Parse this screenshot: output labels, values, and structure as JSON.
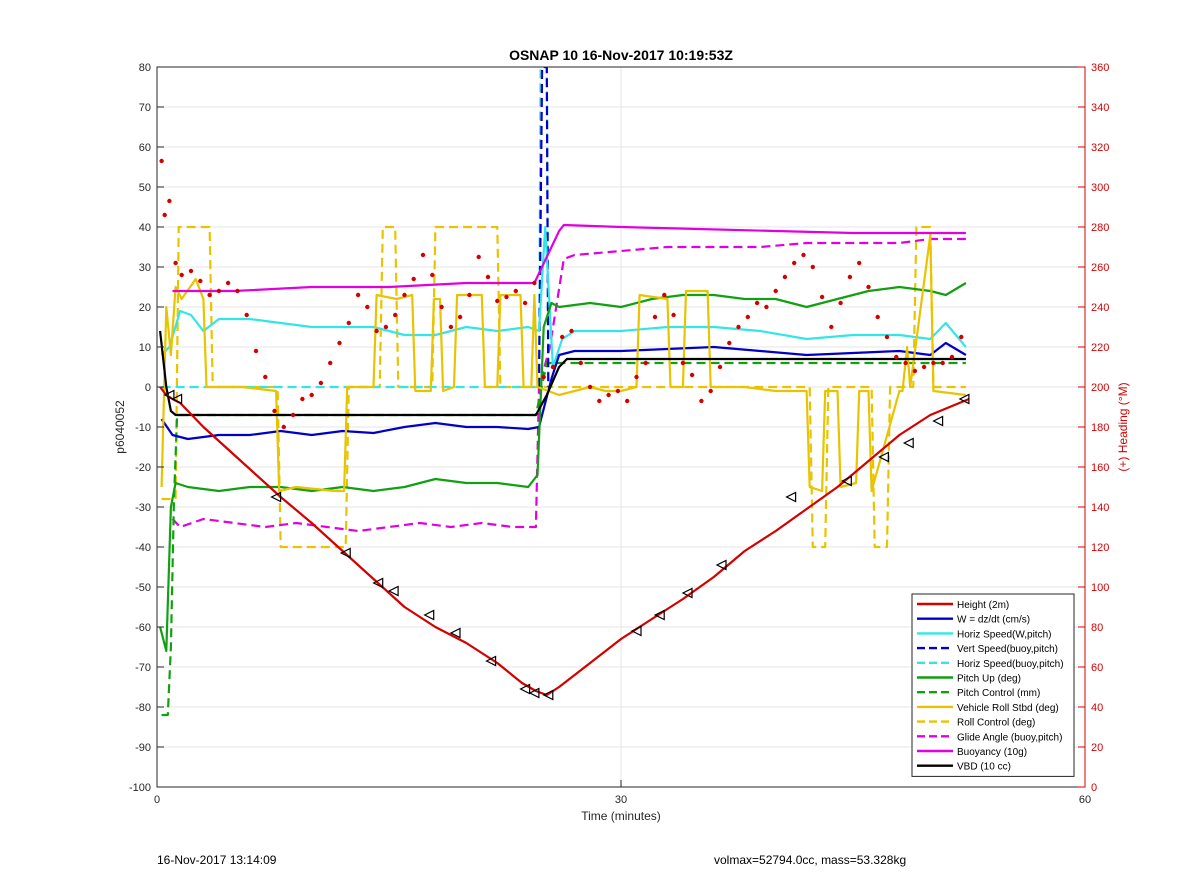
{
  "footer": {
    "timestamp": "16-Nov-2017 13:14:09",
    "summary": "volmax=52794.0cc, mass=53.328kg"
  },
  "chart_data": {
    "type": "line",
    "title": "OSNAP 10 16-Nov-2017 10:19:53Z",
    "xlabel": "Time (minutes)",
    "ylabel": "p6040052",
    "y2label": "(+) Heading (°M)",
    "xlim": [
      0,
      60
    ],
    "ylim": [
      -100,
      80
    ],
    "y2lim": [
      0,
      360
    ],
    "xticks": [
      0,
      30,
      60
    ],
    "yticks": [
      -100,
      -90,
      -80,
      -70,
      -60,
      -50,
      -40,
      -30,
      -20,
      -10,
      0,
      10,
      20,
      30,
      40,
      50,
      60,
      70,
      80
    ],
    "y2ticks": [
      0,
      20,
      40,
      60,
      80,
      100,
      120,
      140,
      160,
      180,
      200,
      220,
      240,
      260,
      280,
      300,
      320,
      340,
      360
    ],
    "grid": true,
    "legend_position": "bottom-right",
    "colors": {
      "red": "#d40000",
      "blue": "#0000c8",
      "cyan": "#33e6e6",
      "green": "#12a012",
      "yellow": "#e8c400",
      "magenta": "#e000e0",
      "black": "#000000",
      "right_axis": "#d40000"
    },
    "series": [
      {
        "name": "Height (2m)",
        "color": "red",
        "style": "solid",
        "x": [
          0.2,
          0.6,
          1.0,
          1.5,
          3,
          5,
          8,
          10,
          12,
          14,
          16,
          18,
          20,
          22,
          23.6,
          24.5,
          25.2,
          26,
          28,
          30,
          32,
          34,
          36,
          38,
          40,
          42,
          44,
          46,
          48,
          50,
          52.5
        ],
        "y": [
          0,
          -2,
          -3,
          -4,
          -10,
          -17,
          -27.5,
          -34,
          -41,
          -48,
          -55,
          -60,
          -64,
          -69,
          -74,
          -76,
          -77,
          -75,
          -69,
          -63,
          -58,
          -53,
          -47.5,
          -41,
          -36,
          -30.5,
          -25,
          -18.5,
          -12,
          -7,
          -3
        ]
      },
      {
        "name": "W = dz/dt (cm/s)",
        "color": "blue",
        "style": "solid",
        "x": [
          0.3,
          1,
          2,
          4,
          6,
          8,
          10,
          12,
          14,
          16,
          18,
          20,
          22,
          24,
          24.7,
          25.5,
          26,
          27,
          30,
          33,
          36,
          39,
          42,
          45,
          48,
          50,
          51,
          52.3
        ],
        "y": [
          -8,
          -12,
          -13,
          -12,
          -12,
          -11,
          -12,
          -11,
          -11.5,
          -10,
          -9,
          -10,
          -10,
          -10.5,
          -10,
          2,
          8,
          9,
          9,
          9.5,
          10,
          9,
          8,
          8.5,
          9,
          8,
          11,
          8
        ]
      },
      {
        "name": "Horiz Speed(W,pitch)",
        "color": "cyan",
        "style": "solid",
        "x": [
          0.3,
          0.8,
          1.5,
          2.2,
          3,
          4,
          6,
          8,
          10,
          12,
          14,
          16,
          18,
          20,
          22,
          24,
          24.7,
          25.1,
          25.6,
          26.2,
          27,
          30,
          33,
          36,
          39,
          42,
          45,
          48,
          50,
          51,
          52.3
        ],
        "y": [
          8,
          10,
          19,
          18,
          14,
          17,
          17,
          16,
          15,
          15,
          15,
          13,
          13,
          15,
          14,
          15,
          14,
          40,
          5,
          12,
          14,
          14,
          15,
          15,
          14,
          12,
          13,
          13,
          12,
          16,
          10
        ]
      },
      {
        "name": "Vert Speed(buoy,pitch)",
        "color": "blue",
        "style": "dashed",
        "x": [
          0,
          24.6,
          24.7,
          24.9,
          25.0,
          25.2,
          25.3,
          60
        ],
        "y": [
          null,
          null,
          0,
          80,
          80,
          80,
          0,
          null
        ]
      },
      {
        "name": "Horiz Speed(buoy,pitch)",
        "color": "cyan",
        "style": "dashed",
        "x": [
          0.3,
          24.5,
          24.7,
          24.8,
          25.2,
          25.3
        ],
        "y": [
          0,
          0,
          0,
          80,
          80,
          0
        ]
      },
      {
        "name": "Pitch Up (deg)",
        "color": "green",
        "style": "solid",
        "x": [
          0.2,
          0.6,
          0.9,
          1.2,
          2,
          4,
          6,
          8,
          10,
          12,
          14,
          16,
          18,
          20,
          22,
          24,
          24.6,
          25.0,
          25.5,
          26,
          28,
          30,
          32,
          34,
          36,
          38,
          40,
          42,
          44,
          46,
          48,
          50,
          51,
          52.3
        ],
        "y": [
          -60,
          -66,
          -30,
          -24,
          -25,
          -26,
          -25,
          -25,
          -26,
          -25,
          -26,
          -25,
          -23,
          -24,
          -24,
          -25,
          -22,
          15,
          21,
          20,
          21,
          20,
          22,
          23,
          23,
          22,
          22,
          20,
          22,
          24,
          25,
          24,
          23,
          26
        ]
      },
      {
        "name": "Pitch Control (mm)",
        "color": "green",
        "style": "dashed",
        "x": [
          0.3,
          0.7,
          0.9,
          1.1,
          1.3,
          5,
          10,
          15,
          20,
          24.5,
          25.2,
          26,
          30,
          40,
          50,
          52.3
        ],
        "y": [
          -82,
          -82,
          -65,
          -28,
          -7,
          -7,
          -7,
          -7,
          -7,
          -7,
          6,
          6,
          6,
          6,
          6,
          6
        ]
      },
      {
        "name": "Vehicle Roll Stbd (deg)",
        "color": "yellow",
        "style": "solid",
        "x": [
          0.3,
          0.6,
          0.9,
          1.2,
          1.6,
          2.5,
          3.0,
          3.2,
          5.5,
          7.7,
          7.9,
          9,
          11.5,
          12.1,
          12.3,
          14,
          14.2,
          15.5,
          16.5,
          16.7,
          17.7,
          17.9,
          18.3,
          18.5,
          19.2,
          19.4,
          21,
          21.2,
          22,
          22.2,
          23.5,
          23.7,
          24.2,
          24.4,
          24.6,
          26,
          28,
          29,
          30,
          31,
          31.2,
          33,
          33.2,
          34,
          34.2,
          35.6,
          35.8,
          38,
          40,
          42,
          42.2,
          43,
          43.2,
          44,
          44.2,
          45.2,
          45.4,
          46,
          46.2,
          48,
          48.2,
          48.5,
          48.7,
          50,
          50.2,
          52.3
        ],
        "y": [
          -25,
          20,
          8,
          25,
          22,
          27,
          22,
          0,
          0,
          -1,
          -26,
          -25,
          -26,
          -26,
          0,
          0,
          23,
          22,
          23,
          -1,
          -1,
          22,
          22,
          -1,
          0,
          23,
          23,
          0,
          0,
          23,
          23,
          0,
          0,
          23,
          0,
          -2,
          0,
          -1,
          -1,
          0,
          23,
          22,
          0,
          0,
          24,
          24,
          0,
          0,
          -1,
          -1,
          -25,
          -26,
          -1,
          -1,
          -25,
          -24,
          -1,
          -1,
          -26,
          -1,
          -1,
          10,
          0,
          38,
          -1,
          -2
        ]
      },
      {
        "name": "Roll Control (deg)",
        "color": "yellow",
        "style": "dashed",
        "x": [
          0.3,
          1.2,
          1.4,
          3.4,
          3.6,
          7.8,
          8.0,
          12.2,
          12.4,
          14.4,
          14.6,
          15.4,
          15.6,
          17.8,
          18.0,
          22.0,
          22.2,
          24.4,
          24.6,
          30,
          40,
          42.2,
          42.4,
          43.2,
          43.4,
          46.2,
          46.4,
          47.2,
          47.4,
          48.9,
          49.1,
          50.0,
          50.2,
          52.3
        ],
        "y": [
          -28,
          -28,
          40,
          40,
          0,
          0,
          -40,
          -40,
          0,
          0,
          40,
          40,
          0,
          0,
          40,
          40,
          0,
          0,
          0,
          0,
          0,
          0,
          -40,
          -40,
          0,
          0,
          -40,
          -40,
          0,
          0,
          40,
          40,
          0,
          0
        ]
      },
      {
        "name": "Glide Angle (buoy,pitch)",
        "color": "magenta",
        "style": "dashed",
        "x": [
          1.0,
          1.5,
          3,
          5,
          7,
          9,
          11,
          13,
          15,
          17,
          19,
          21,
          23,
          24.5,
          24.7,
          25.4,
          26.3,
          27,
          30,
          33,
          36,
          39,
          42,
          45,
          48,
          50,
          51,
          52.3
        ],
        "y": [
          -33,
          -35,
          -33,
          -34,
          -35,
          -34,
          -35,
          -36,
          -35,
          -34,
          -35,
          -34,
          -35,
          -35,
          0,
          10,
          32,
          33,
          34,
          35,
          35,
          35,
          36,
          36,
          36,
          37,
          37,
          37
        ]
      },
      {
        "name": "Buoyancy (10g)",
        "color": "magenta",
        "style": "solid",
        "x": [
          1.0,
          5,
          10,
          15,
          20,
          24.4,
          26.0,
          26.3,
          30,
          35,
          40,
          45,
          50,
          52.3
        ],
        "y": [
          24,
          24,
          25,
          25,
          26,
          26,
          39,
          40.5,
          40,
          39.5,
          39,
          38.5,
          38.5,
          38.5
        ]
      },
      {
        "name": "VBD (10 cc)",
        "color": "black",
        "style": "solid",
        "x": [
          0.2,
          0.6,
          0.9,
          1.2,
          5,
          10,
          15,
          20,
          24.5,
          25.2,
          26.0,
          26.5,
          30,
          35,
          40,
          45,
          50,
          52.3
        ],
        "y": [
          14,
          0,
          -6,
          -7,
          -7,
          -7,
          -7,
          -7,
          -7,
          -2,
          5,
          7,
          7,
          7,
          7,
          7,
          7,
          7
        ]
      }
    ],
    "heading_dots": {
      "name": "(+) Heading (°M)",
      "color": "red",
      "axis": "right",
      "x": [
        0.3,
        0.5,
        0.8,
        1.2,
        1.6,
        2.2,
        2.8,
        3.4,
        4.0,
        4.6,
        5.2,
        5.8,
        6.4,
        7.0,
        7.6,
        8.2,
        8.8,
        9.4,
        10.0,
        10.6,
        11.2,
        11.8,
        12.4,
        13.0,
        13.6,
        14.2,
        14.8,
        15.4,
        16.0,
        16.6,
        17.2,
        17.8,
        18.4,
        19.0,
        19.6,
        20.2,
        20.8,
        21.4,
        22.0,
        22.6,
        23.2,
        23.8,
        24.4,
        25.0,
        25.6,
        26.2,
        26.8,
        27.4,
        28.0,
        28.6,
        29.2,
        29.8,
        30.4,
        31.0,
        31.6,
        32.2,
        32.8,
        33.4,
        34.0,
        34.6,
        35.2,
        35.8,
        36.4,
        37.0,
        37.6,
        38.2,
        38.8,
        39.4,
        40.0,
        40.6,
        41.2,
        41.8,
        42.4,
        43.0,
        43.6,
        44.2,
        44.8,
        45.4,
        46.0,
        46.6,
        47.2,
        47.8,
        48.4,
        49.0,
        49.6,
        50.2,
        50.8,
        51.4,
        52.0
      ],
      "y": [
        313,
        286,
        293,
        262,
        256,
        258,
        253,
        246,
        248,
        252,
        248,
        236,
        218,
        205,
        188,
        180,
        186,
        194,
        196,
        202,
        212,
        222,
        232,
        246,
        240,
        228,
        230,
        236,
        246,
        254,
        266,
        256,
        240,
        230,
        235,
        246,
        265,
        255,
        243,
        245,
        248,
        242,
        252,
        205,
        210,
        225,
        228,
        212,
        200,
        193,
        196,
        198,
        193,
        205,
        212,
        235,
        246,
        236,
        212,
        206,
        193,
        198,
        210,
        222,
        230,
        235,
        242,
        240,
        248,
        255,
        262,
        266,
        260,
        245,
        230,
        242,
        255,
        262,
        250,
        235,
        225,
        215,
        212,
        208,
        210,
        212,
        212,
        215,
        225
      ]
    },
    "markers": {
      "series": "Height (2m)",
      "x": [
        0.8,
        1.3,
        7.7,
        12.2,
        14.3,
        15.3,
        17.6,
        19.3,
        21.6,
        23.8,
        24.4,
        25.3,
        31.0,
        32.5,
        34.3,
        36.5,
        41.0,
        44.6,
        47.0,
        48.6,
        50.5,
        52.2
      ],
      "y": [
        -2,
        -3,
        -27.5,
        -41.5,
        -49,
        -51,
        -57,
        -61.5,
        -68.5,
        -75.5,
        -76.5,
        -77,
        -61,
        -57,
        -51.5,
        -44.5,
        -27.5,
        -23.5,
        -17.5,
        -14,
        -8.5,
        -3
      ]
    }
  }
}
